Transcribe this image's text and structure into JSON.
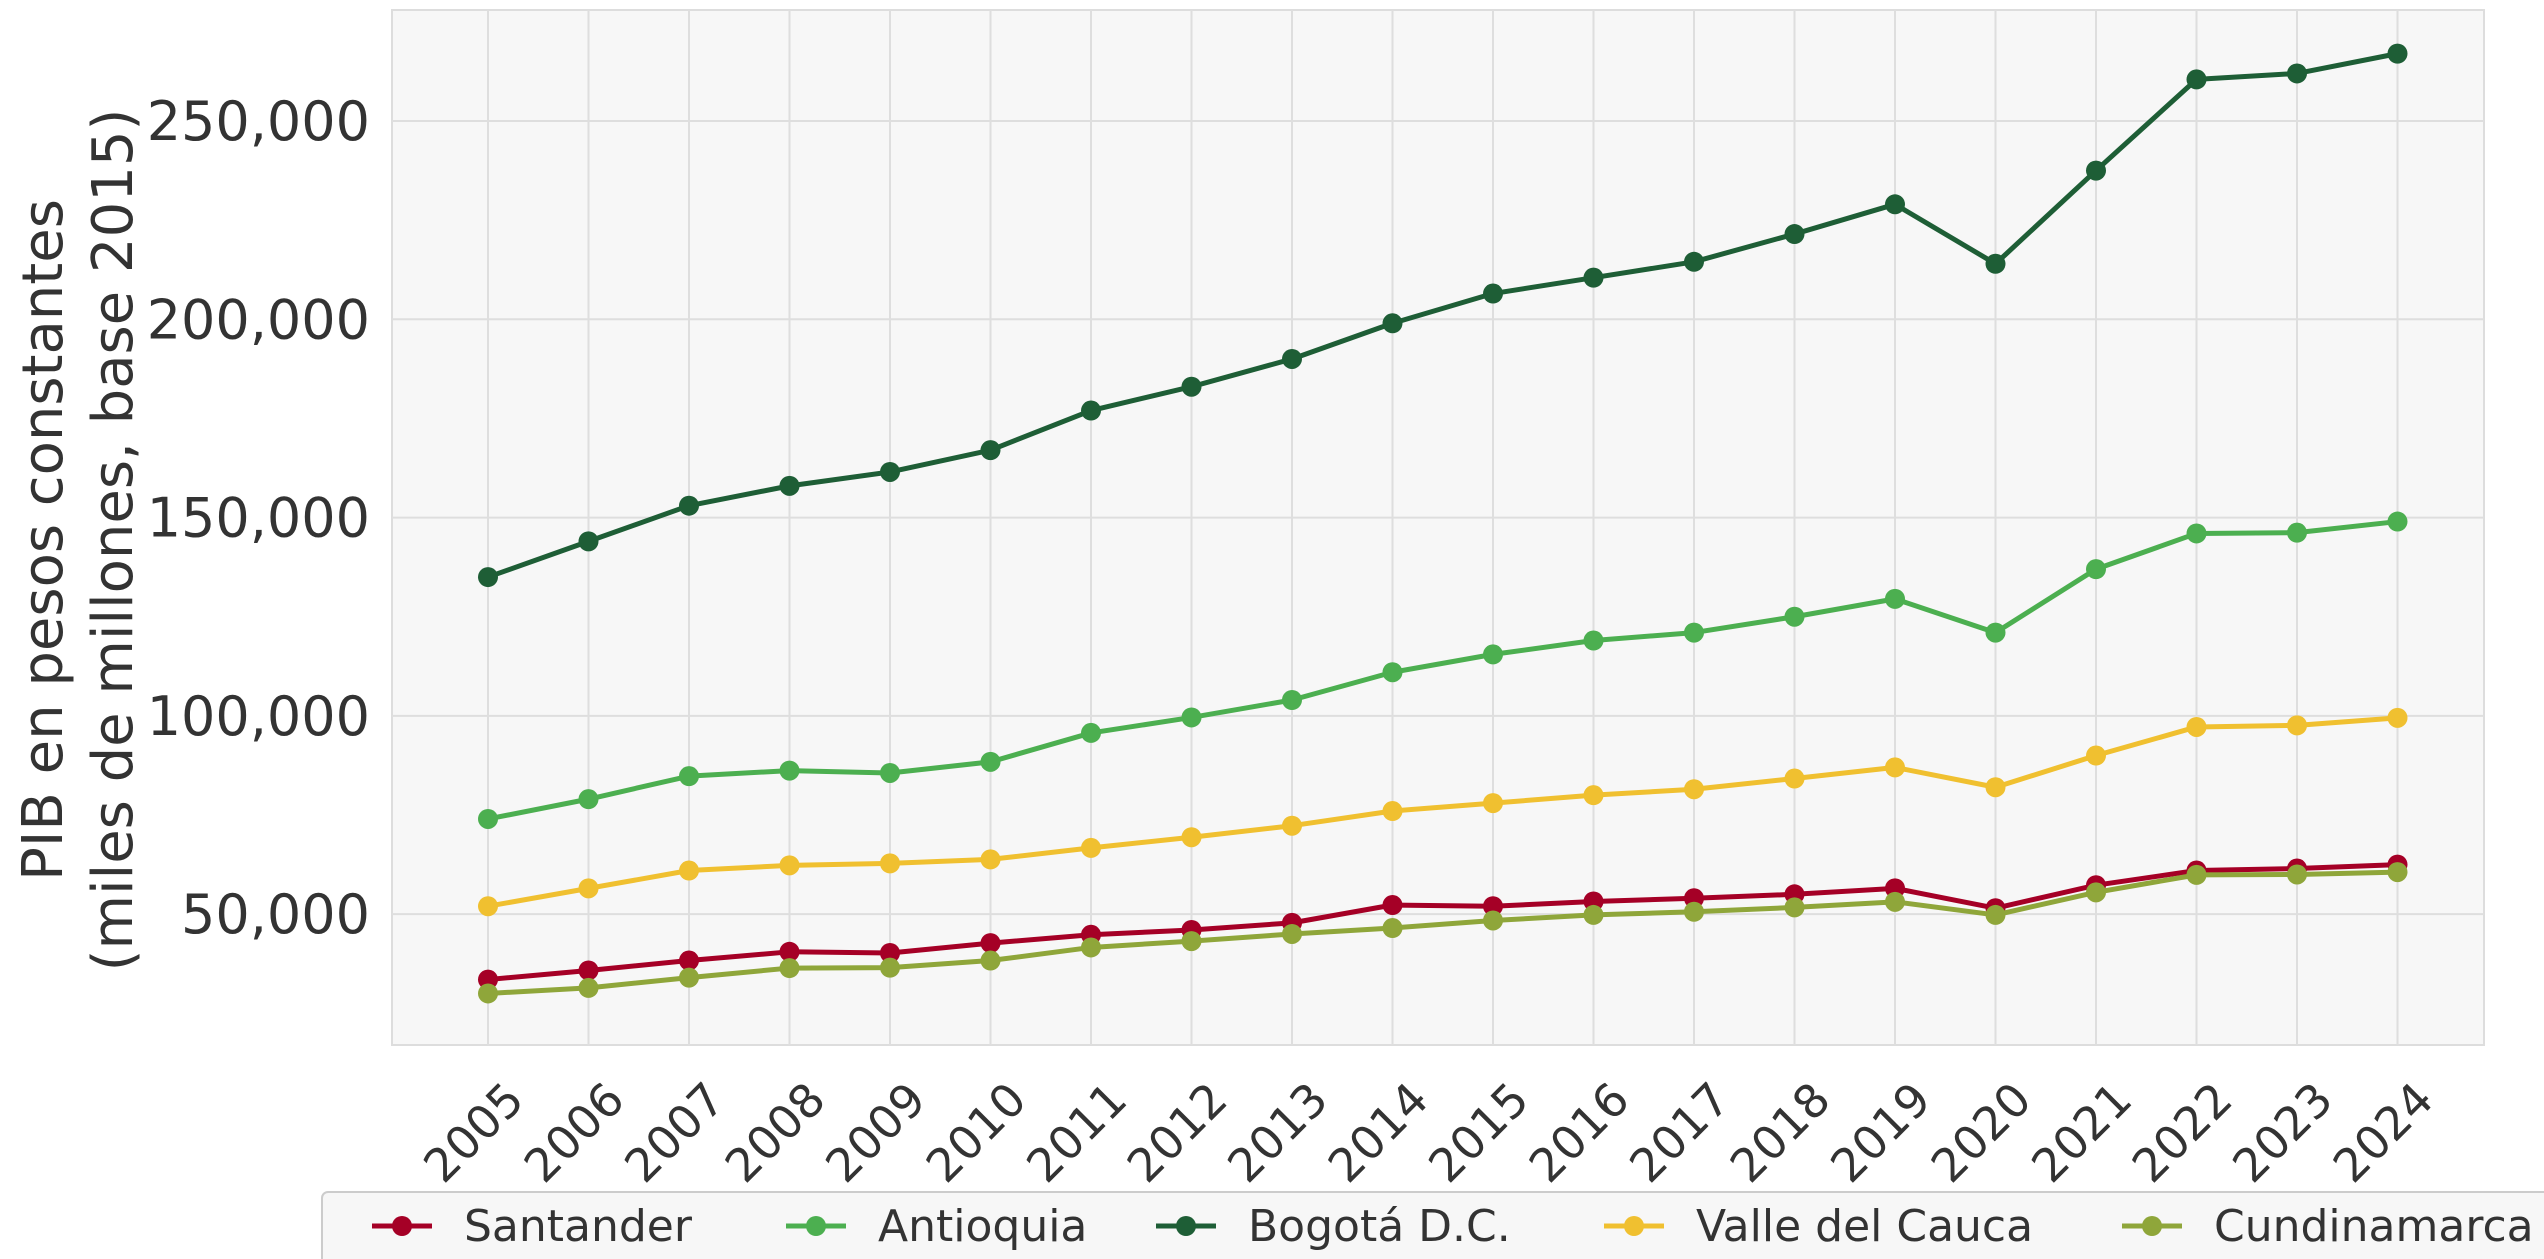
{
  "chart_data": {
    "type": "line",
    "title": "",
    "xlabel": "",
    "ylabel_lines": [
      "PIB en pesos constantes",
      "(miles de millones, base 2015)"
    ],
    "x": [
      "2005",
      "2006",
      "2007",
      "2008",
      "2009",
      "2010",
      "2011",
      "2012",
      "2013",
      "2014",
      "2015",
      "2016",
      "2017",
      "2018",
      "2019",
      "2020",
      "2021",
      "2022",
      "2023",
      "2024"
    ],
    "ylim": [
      17000,
      278000
    ],
    "yticks": [
      50000,
      100000,
      150000,
      200000,
      250000
    ],
    "ytick_labels": [
      "50,000",
      "100,000",
      "150,000",
      "200,000",
      "250,000"
    ],
    "grid": true,
    "legend_position": "bottom",
    "series": [
      {
        "name": "Santander",
        "color": "#a50026",
        "values": [
          33500,
          35800,
          38300,
          40500,
          40200,
          42700,
          44800,
          46000,
          47800,
          52300,
          52000,
          53200,
          54000,
          55000,
          56500,
          51500,
          57300,
          61000,
          61500,
          62500
        ]
      },
      {
        "name": "Antioquia",
        "color": "#4caf50",
        "values": [
          74000,
          79000,
          84800,
          86200,
          85600,
          88400,
          95700,
          99600,
          104000,
          111000,
          115500,
          119000,
          121000,
          125000,
          129500,
          121000,
          137000,
          146000,
          146200,
          149000
        ]
      },
      {
        "name": "Bogotá D.C.",
        "color": "#1e5e36",
        "values": [
          135000,
          144000,
          153000,
          158000,
          161500,
          167000,
          177000,
          183000,
          190000,
          199000,
          206500,
          210500,
          214500,
          221500,
          229000,
          214000,
          237500,
          260500,
          262000,
          267000
        ]
      },
      {
        "name": "Valle del Cauca",
        "color": "#f0c030",
        "values": [
          52000,
          56500,
          61000,
          62300,
          62800,
          63800,
          66700,
          69400,
          72300,
          76000,
          78000,
          80000,
          81500,
          84200,
          87000,
          82000,
          90000,
          97200,
          97600,
          99500
        ]
      },
      {
        "name": "Cundinamarca",
        "color": "#8fa63a",
        "values": [
          30000,
          31400,
          34000,
          36400,
          36500,
          38300,
          41600,
          43200,
          45000,
          46500,
          48400,
          49800,
          50600,
          51700,
          53100,
          49800,
          55500,
          59900,
          60000,
          60600
        ]
      }
    ]
  }
}
